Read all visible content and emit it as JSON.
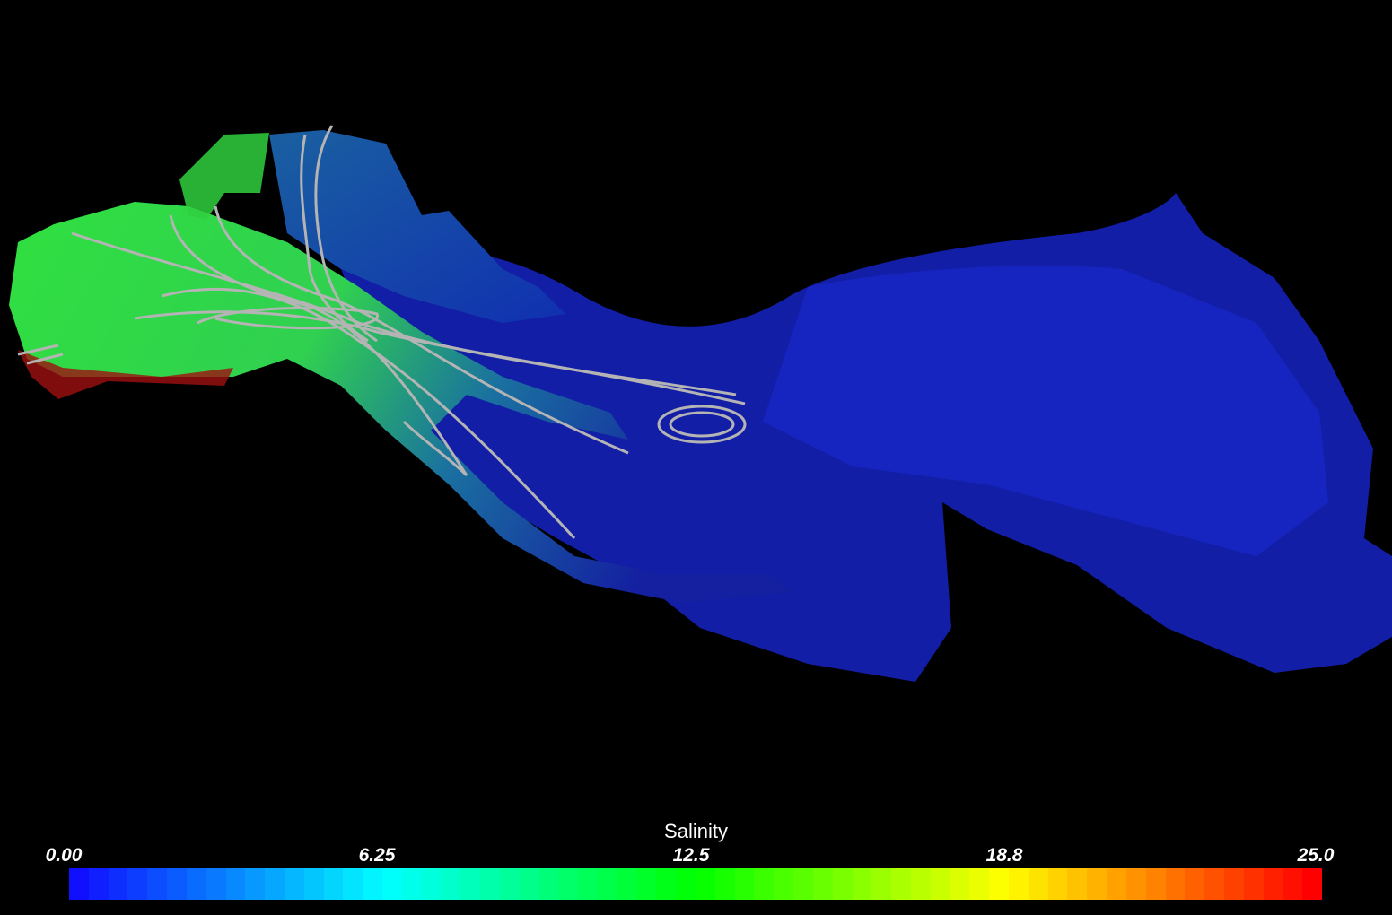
{
  "scalar_bar": {
    "title": "Salinity",
    "ticks": [
      "0.00",
      "6.25",
      "12.5",
      "18.8",
      "25.0"
    ],
    "range": [
      0,
      25
    ],
    "colormap": [
      "#1010ff",
      "#00ffff",
      "#00ff00",
      "#ffff00",
      "#ff0000"
    ]
  },
  "scene": {
    "streamline_color": "#b4b4b4",
    "background": "#000000"
  }
}
